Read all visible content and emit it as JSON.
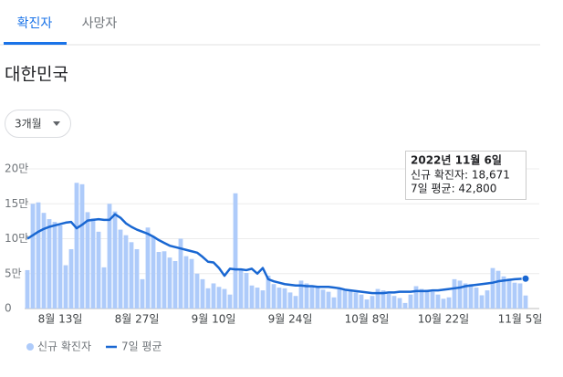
{
  "tabs": [
    "확진자",
    "사망자"
  ],
  "region": "대한민국",
  "period": "3개월",
  "chart_data": {
    "type": "combo",
    "categories": [
      null,
      null,
      null,
      null,
      null,
      null,
      "8월 13일",
      null,
      null,
      null,
      null,
      null,
      null,
      null,
      null,
      null,
      null,
      null,
      null,
      null,
      "8월 27일",
      null,
      null,
      null,
      null,
      null,
      null,
      null,
      null,
      null,
      null,
      null,
      null,
      null,
      "9월 10일",
      null,
      null,
      null,
      null,
      null,
      null,
      null,
      null,
      null,
      null,
      null,
      null,
      null,
      "9월 24일",
      null,
      null,
      null,
      null,
      null,
      null,
      null,
      null,
      null,
      null,
      null,
      null,
      null,
      "10월 8일",
      null,
      null,
      null,
      null,
      null,
      null,
      null,
      null,
      null,
      null,
      null,
      null,
      null,
      "10월 22일",
      null,
      null,
      null,
      null,
      null,
      null,
      null,
      null,
      null,
      null,
      null,
      null,
      null,
      "11월 5일",
      null
    ],
    "series": [
      {
        "name": "신규 확진자",
        "mark": "bar",
        "color": "#aecbfa",
        "values": [
          55000,
          150000,
          152000,
          137000,
          128000,
          124000,
          119000,
          62000,
          85000,
          180000,
          178000,
          138000,
          129000,
          110000,
          59000,
          150000,
          139000,
          113000,
          105000,
          95000,
          85000,
          42000,
          116000,
          103000,
          81000,
          82000,
          73000,
          68000,
          100000,
          75000,
          71000,
          50000,
          42000,
          29000,
          36000,
          31000,
          28000,
          20000,
          165000,
          57000,
          51000,
          33000,
          30000,
          26000,
          47000,
          35000,
          30000,
          29000,
          23000,
          18000,
          40000,
          36000,
          33000,
          30000,
          27000,
          24000,
          16000,
          30000,
          28000,
          26000,
          23000,
          20000,
          13000,
          18000,
          28000,
          26000,
          21000,
          18000,
          15000,
          8000,
          20000,
          32000,
          28000,
          27000,
          24000,
          20000,
          14000,
          16000,
          42000,
          40000,
          36000,
          35000,
          30000,
          19000,
          26000,
          58000,
          54000,
          46000,
          43000,
          37000,
          36000,
          18671
        ]
      },
      {
        "name": "7일 평균",
        "mark": "line",
        "color": "#1967d2",
        "values": [
          100000,
          105000,
          110000,
          114000,
          117000,
          119000,
          121000,
          123000,
          124000,
          115000,
          120000,
          126000,
          127000,
          128000,
          127000,
          127000,
          135000,
          130000,
          122000,
          117000,
          113000,
          110000,
          107000,
          103000,
          98000,
          94000,
          90000,
          88000,
          86000,
          84000,
          82000,
          80000,
          74000,
          67000,
          66000,
          58000,
          47000,
          57000,
          56000,
          56000,
          55000,
          57000,
          50000,
          58000,
          42000,
          39000,
          37000,
          35000,
          34000,
          33000,
          33000,
          32000,
          32000,
          31000,
          31000,
          31000,
          30000,
          29000,
          27000,
          26000,
          25000,
          24000,
          23000,
          22000,
          22000,
          22000,
          23000,
          23000,
          24000,
          24000,
          24000,
          25000,
          25000,
          25000,
          26000,
          26000,
          27000,
          28000,
          29000,
          30000,
          32000,
          33000,
          34000,
          35000,
          36000,
          37000,
          39000,
          40000,
          41000,
          42000,
          42500,
          42800
        ]
      }
    ],
    "ylim": [
      0,
      200000
    ],
    "yticks": [
      0,
      {
        "value": 50000,
        "label": "5만"
      },
      {
        "value": 100000,
        "label": "10만"
      },
      {
        "value": 150000,
        "label": "15만"
      },
      {
        "value": 200000,
        "label": "20만"
      }
    ],
    "grid": true,
    "legend": "bottom-left",
    "tooltip": {
      "title": "2022년 11월 6일",
      "lines": [
        "신규 확진자: 18,671",
        "7일 평균: 42,800"
      ]
    }
  }
}
